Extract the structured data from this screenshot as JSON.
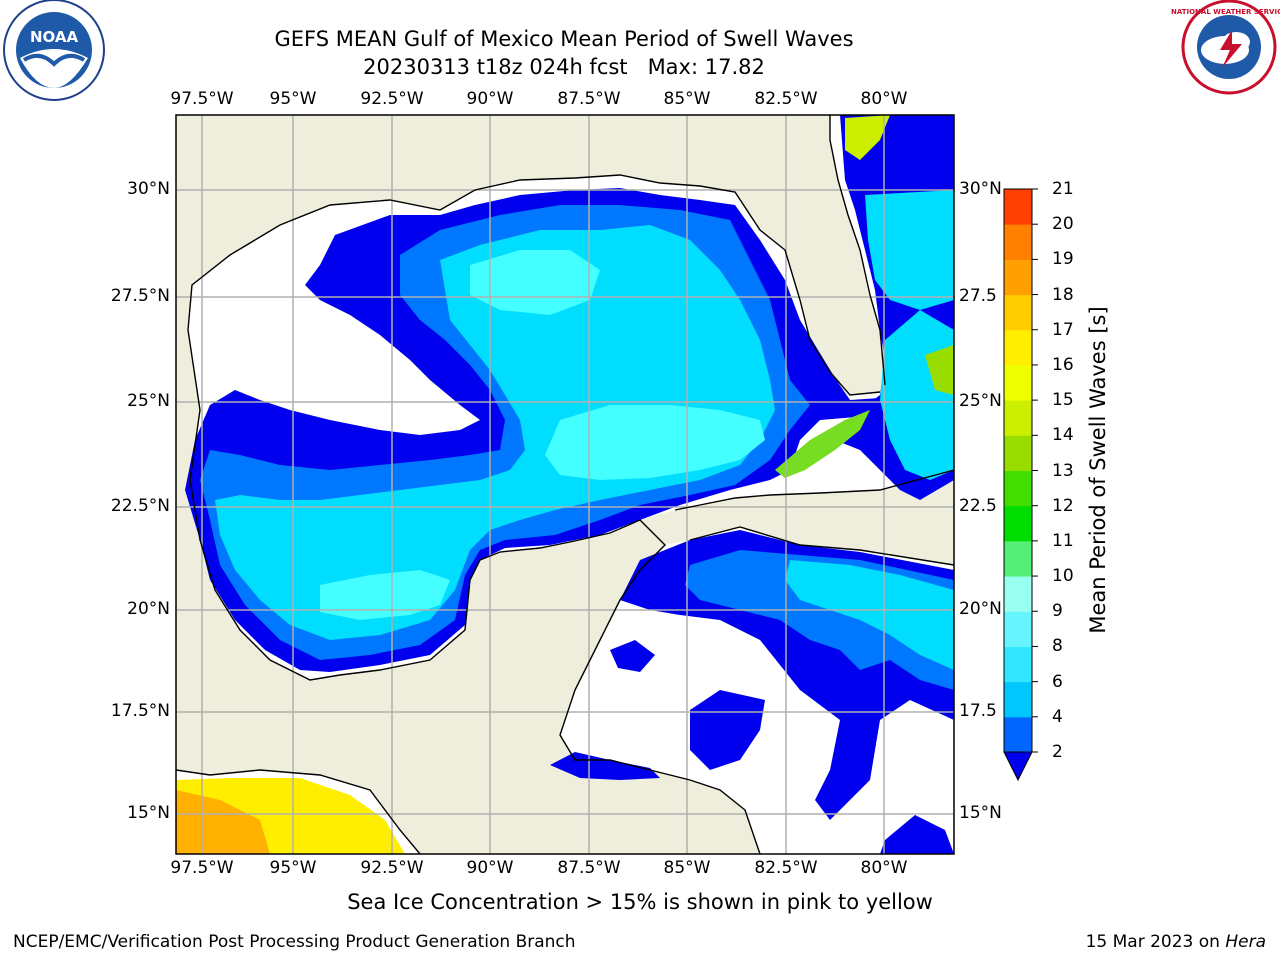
{
  "title": {
    "line1": "GEFS MEAN Gulf of Mexico Mean Period of Swell Waves",
    "line2": "20230313 t18z 024h fcst   Max: 17.82"
  },
  "logos": {
    "left": {
      "icon": "noaa-logo-icon",
      "text": "NOAA"
    },
    "right": {
      "icon": "nws-logo-icon",
      "text": "NATIONAL WEATHER SERVICE"
    }
  },
  "axes": {
    "lon_labels": [
      "97.5°W",
      "95°W",
      "92.5°W",
      "90°W",
      "87.5°W",
      "85°W",
      "82.5°W",
      "80°W"
    ],
    "lat_labels_left": [
      "30°N",
      "27.5°N",
      "25°N",
      "22.5°N",
      "20°N",
      "17.5°N",
      "15°N"
    ],
    "lat_labels_right": [
      "30°N",
      "27.5",
      "25°N",
      "22.5",
      "20°N",
      "17.5",
      "15°N"
    ]
  },
  "colorbar": {
    "label": "Mean Period of Swell Waves [s]",
    "ticks": [
      "2",
      "4",
      "6",
      "8",
      "9",
      "10",
      "11",
      "12",
      "13",
      "14",
      "15",
      "16",
      "17",
      "18",
      "19",
      "20",
      "21"
    ],
    "colors": [
      "#0066ff",
      "#00c8ff",
      "#33e6ff",
      "#66f5ff",
      "#99fff0",
      "#55ee77",
      "#00dd00",
      "#44dd00",
      "#99dd00",
      "#ccee00",
      "#eeff00",
      "#ffee00",
      "#ffcc00",
      "#ffa000",
      "#ff8000",
      "#ff4000",
      "#ff0000"
    ],
    "extend_color": "#0000ee"
  },
  "palette": {
    "land": "#efeedc",
    "ocean_white": "#ffffff",
    "blue_dark": "#0000ee",
    "blue_mid": "#0077ff",
    "cyan": "#00ddff",
    "cyan_light": "#44ffff",
    "grid": "#b0b0b0"
  },
  "annotation": "Sea Ice Concentration > 15% is shown in pink to yellow",
  "footer": {
    "left": "NCEP/EMC/Verification Post Processing Product Generation Branch",
    "right_date": "15 Mar 2023 on ",
    "right_host": "Hera"
  }
}
